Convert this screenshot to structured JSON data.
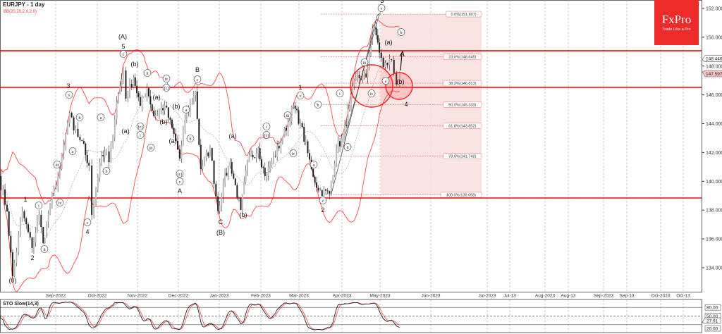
{
  "header": {
    "symbol_title": "EURJPY - 1 day",
    "indicator": "BB(20,20,2.0,2.0)",
    "oscillator": "STO Slow(14,3)"
  },
  "logo": {
    "brand": "FxPro",
    "tagline": "Trade Like a Pro"
  },
  "colors": {
    "band": "#ff3333",
    "level": "#ff0000",
    "fib_zone": "#f8dede",
    "up_arrow": "#1a9a1a",
    "logo_bg": "#ee2a2a"
  },
  "chart_data": {
    "type": "candlestick",
    "symbol": "EURJPY",
    "timeframe": "1 day",
    "ylim": [
      132.6,
      152.6
    ],
    "y_ticks": [
      "152.000",
      "150.000",
      "148.000",
      "146.000",
      "144.000",
      "142.000",
      "140.000",
      "138.000",
      "136.000",
      "134.000"
    ],
    "y_tick_values": [
      152,
      150,
      148,
      146,
      144,
      142,
      140,
      138,
      136,
      134
    ],
    "price_tags": {
      "high_line": "148.446",
      "current": "147.597"
    },
    "x_ticks": [
      "Sep-2022",
      "Oct-2022",
      "Nov-2022",
      "Dec-2022",
      "Jan-2023",
      "Feb-2023",
      "Mar-2023",
      "Apr-2023",
      "May-2023",
      "Jun-2023",
      "Jul-2023",
      "Jul-13",
      "Aug-2023",
      "Aug-13",
      "Sep-2023",
      "Sep-13",
      "Oct-2023",
      "Oct-13"
    ],
    "x_tick_dates": [
      "2022-09-01",
      "2022-10-01",
      "2022-11-01",
      "2022-12-01",
      "2023-01-01",
      "2023-02-01",
      "2023-03-01",
      "2023-04-01",
      "2023-05-01",
      "2023-06-01",
      "2023-07-01",
      "2023-07-13",
      "2023-08-01",
      "2023-08-13",
      "2023-09-01",
      "2023-09-13",
      "2023-10-01",
      "2023-10-13"
    ],
    "close_path": [
      [
        "2022-07-22",
        140.36
      ],
      [
        "2022-07-28",
        137.91
      ],
      [
        "2022-08-01",
        133.41
      ],
      [
        "2022-08-08",
        137.91
      ],
      [
        "2022-08-15",
        135.37
      ],
      [
        "2022-08-20",
        137.67
      ],
      [
        "2022-08-23",
        135.71
      ],
      [
        "2022-08-28",
        138.4
      ],
      [
        "2022-09-04",
        140.85
      ],
      [
        "2022-09-11",
        144.76
      ],
      [
        "2022-09-14",
        143.54
      ],
      [
        "2022-09-20",
        142.8
      ],
      [
        "2022-09-25",
        141.09
      ],
      [
        "2022-09-27",
        137.67
      ],
      [
        "2022-10-03",
        141.33
      ],
      [
        "2022-10-08",
        142.07
      ],
      [
        "2022-10-10",
        141.33
      ],
      [
        "2022-10-16",
        145.49
      ],
      [
        "2022-10-21",
        147.69
      ],
      [
        "2022-10-23",
        145.74
      ],
      [
        "2022-10-29",
        147.21
      ],
      [
        "2022-11-03",
        145.25
      ],
      [
        "2022-11-08",
        146.47
      ],
      [
        "2022-11-13",
        144.51
      ],
      [
        "2022-11-21",
        145.25
      ],
      [
        "2022-11-29",
        142.8
      ],
      [
        "2022-12-02",
        141.58
      ],
      [
        "2022-12-06",
        144.27
      ],
      [
        "2022-12-14",
        146.23
      ],
      [
        "2022-12-18",
        140.85
      ],
      [
        "2022-12-25",
        142.31
      ],
      [
        "2022-12-31",
        137.91
      ],
      [
        "2023-01-04",
        139.87
      ],
      [
        "2023-01-09",
        141.33
      ],
      [
        "2023-01-17",
        138.01
      ],
      [
        "2023-01-22",
        141.33
      ],
      [
        "2023-01-30",
        142.31
      ],
      [
        "2023-02-04",
        140.36
      ],
      [
        "2023-02-09",
        141.33
      ],
      [
        "2023-02-17",
        143.05
      ],
      [
        "2023-02-25",
        145.25
      ],
      [
        "2023-03-02",
        144.03
      ],
      [
        "2023-03-10",
        140.85
      ],
      [
        "2023-03-15",
        139.38
      ],
      [
        "2023-03-23",
        139.13
      ],
      [
        "2023-03-28",
        142.31
      ],
      [
        "2023-04-02",
        143.05
      ],
      [
        "2023-04-07",
        145.25
      ],
      [
        "2023-04-12",
        147.21
      ],
      [
        "2023-04-20",
        147.21
      ],
      [
        "2023-04-25",
        150.63
      ],
      [
        "2023-04-28",
        150.14
      ],
      [
        "2023-05-03",
        147.94
      ],
      [
        "2023-05-08",
        148.43
      ],
      [
        "2023-05-11",
        146.72
      ],
      [
        "2023-05-13",
        147.6
      ]
    ],
    "horizontal_levels": [
      149.06,
      146.52,
      138.84
    ],
    "fibonacci": [
      {
        "label": "0.0%(151.607)",
        "price": 151.607
      },
      {
        "label": "23.6%(148.645)",
        "price": 148.645
      },
      {
        "label": "38.2%(146.813)",
        "price": 146.813
      },
      {
        "label": "50.0%(145.333)",
        "price": 145.333
      },
      {
        "label": "61.8%(143.852)",
        "price": 143.852
      },
      {
        "label": "78.6%(141.742)",
        "price": 141.742
      },
      {
        "label": "100.0%(139.058)",
        "price": 139.058
      }
    ],
    "wave_labels": [
      "(0)",
      "2",
      "1",
      "i",
      "ii",
      "iii",
      "iv",
      "3",
      "v",
      "b",
      "a",
      "4",
      "c",
      "a",
      "b",
      "(A)",
      "5",
      "c",
      "(b)",
      "(a)",
      "ii",
      "(c)",
      "i",
      "iii",
      "(a)",
      "(b)",
      "iv",
      "(c)",
      "(b)",
      "(a)",
      "(c)",
      "v",
      "A",
      "a",
      "b",
      "B",
      "c",
      "C",
      "(B)",
      "(b)",
      "(a)",
      "i",
      "(c)",
      "iii",
      "iv",
      "v",
      "1",
      "b",
      "a",
      "c",
      "2",
      "i",
      "ii",
      "iii",
      "iv",
      "3",
      "v",
      "b",
      "(a)",
      "a",
      "(b)",
      "4"
    ],
    "stochastic": {
      "levels": [
        "80.00",
        "50.00",
        "20.00"
      ],
      "level_values": [
        80,
        50,
        20
      ],
      "current": "27.91",
      "current_value": 27.91,
      "ylim": [
        0,
        100
      ]
    }
  }
}
